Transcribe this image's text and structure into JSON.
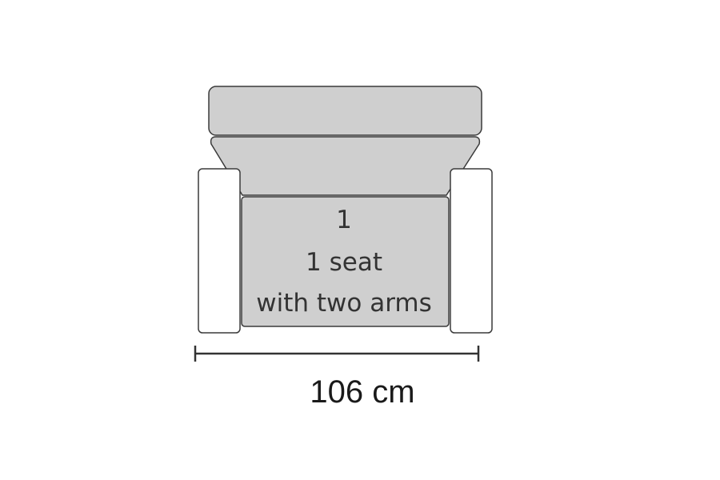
{
  "seat": {
    "number": "1",
    "line1": "1 seat",
    "line2": "with two arms"
  },
  "dimension": {
    "label": "106 cm"
  },
  "colors": {
    "upholstery": "#cfcfcf",
    "arm_fill": "#ffffff",
    "outline": "#3a3a3a",
    "dimension_line": "#333333"
  }
}
